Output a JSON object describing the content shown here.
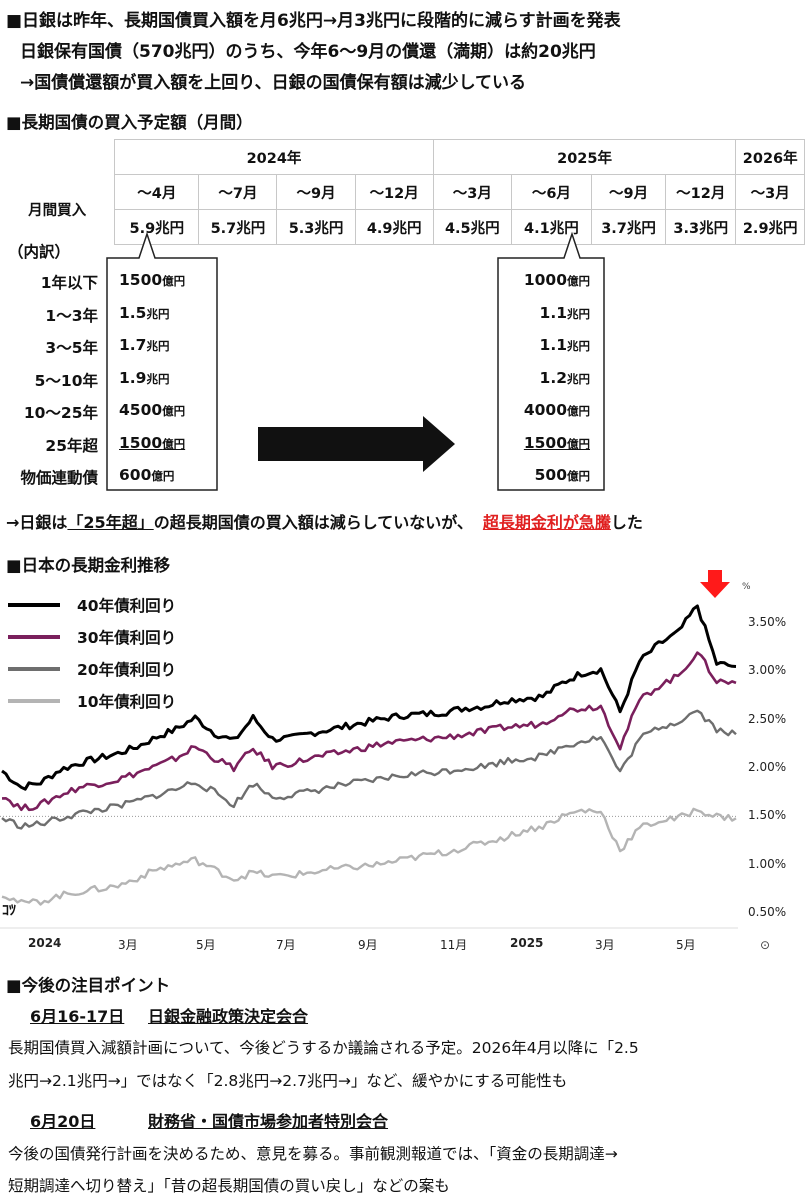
{
  "header": {
    "line1": "■日銀は昨年、長期国債買入額を月6兆円→月3兆円に段階的に減らす計画を発表",
    "line2": "日銀保有国債（570兆円）のうち、今年6〜9月の償還（満期）は約20兆円",
    "line3": "→国債償還額が買入額を上回り、日銀の国債保有額は減少している"
  },
  "plan_section": {
    "title": "■長期国債の買入予定額（月間）",
    "row_label": "月間買入",
    "years": [
      {
        "label": "2024年",
        "span": 4
      },
      {
        "label": "2025年",
        "span": 4
      },
      {
        "label": "2026年",
        "span": 1
      }
    ],
    "periods": [
      "〜4月",
      "〜7月",
      "〜9月",
      "〜12月",
      "〜3月",
      "〜6月",
      "〜9月",
      "〜12月",
      "〜3月"
    ],
    "amounts": [
      "5.9兆円",
      "5.7兆円",
      "5.3兆円",
      "4.9兆円",
      "4.5兆円",
      "4.1兆円",
      "3.7兆円",
      "3.3兆円",
      "2.9兆円"
    ]
  },
  "breakdown": {
    "title": "（内訳）",
    "labels": [
      "1年以下",
      "1〜3年",
      "3〜5年",
      "5〜10年",
      "10〜25年",
      "25年超",
      "物価連動債"
    ],
    "before": [
      {
        "num": "1500",
        "unit": "億円"
      },
      {
        "num": "1.5",
        "unit": "兆円"
      },
      {
        "num": "1.7",
        "unit": "兆円"
      },
      {
        "num": "1.9",
        "unit": "兆円"
      },
      {
        "num": "4500",
        "unit": "億円"
      },
      {
        "num": "1500",
        "unit": "億円"
      },
      {
        "num": "600",
        "unit": "億円"
      }
    ],
    "after": [
      {
        "num": "1000",
        "unit": "億円"
      },
      {
        "num": "1.1",
        "unit": "兆円"
      },
      {
        "num": "1.1",
        "unit": "兆円"
      },
      {
        "num": "1.2",
        "unit": "兆円"
      },
      {
        "num": "4000",
        "unit": "億円"
      },
      {
        "num": "1500",
        "unit": "億円"
      },
      {
        "num": "500",
        "unit": "億円"
      }
    ]
  },
  "note": {
    "prefix": "→日銀は",
    "quoted": "「25年超」",
    "mid": "の超長期国債の買入額は減らしていないが、",
    "red": "超長期金利が急騰",
    "suffix": "した"
  },
  "chart_title": "■日本の長期金利推移",
  "chart_data": {
    "type": "line",
    "unit_label": "%",
    "x_ticks": [
      "2024",
      "3月",
      "5月",
      "7月",
      "9月",
      "11月",
      "2025",
      "3月",
      "5月"
    ],
    "y_ticks": [
      "3.50%",
      "3.00%",
      "2.50%",
      "2.00%",
      "1.50%",
      "1.00%",
      "0.50%"
    ],
    "ylim": [
      0.35,
      3.75
    ],
    "dotted_reference": 1.5,
    "watermark": "ｺﾂ",
    "series": [
      {
        "name": "40年債利回り",
        "color": "#000000",
        "values": [
          1.97,
          1.8,
          1.85,
          1.98,
          2.05,
          2.1,
          2.15,
          2.22,
          2.32,
          2.4,
          2.52,
          2.36,
          2.28,
          2.52,
          2.3,
          2.31,
          2.36,
          2.4,
          2.44,
          2.48,
          2.52,
          2.55,
          2.56,
          2.58,
          2.62,
          2.64,
          2.7,
          2.72,
          2.74,
          2.88,
          2.98,
          3.02,
          2.58,
          3.1,
          3.28,
          3.4,
          3.68,
          3.08,
          3.05
        ]
      },
      {
        "name": "30年債利回り",
        "color": "#7a1f5c",
        "values": [
          1.72,
          1.58,
          1.62,
          1.72,
          1.8,
          1.84,
          1.88,
          1.95,
          2.02,
          2.1,
          2.22,
          2.1,
          2.0,
          2.2,
          2.02,
          2.05,
          2.1,
          2.14,
          2.18,
          2.22,
          2.26,
          2.28,
          2.3,
          2.32,
          2.35,
          2.38,
          2.42,
          2.44,
          2.46,
          2.58,
          2.62,
          2.64,
          2.22,
          2.7,
          2.85,
          2.95,
          3.2,
          2.9,
          2.88
        ]
      },
      {
        "name": "20年債利回り",
        "color": "#6e6e6e",
        "values": [
          1.48,
          1.4,
          1.42,
          1.48,
          1.53,
          1.57,
          1.6,
          1.66,
          1.72,
          1.78,
          1.86,
          1.75,
          1.62,
          1.84,
          1.7,
          1.72,
          1.76,
          1.8,
          1.84,
          1.86,
          1.9,
          1.93,
          1.95,
          1.97,
          2.0,
          2.02,
          2.07,
          2.1,
          2.12,
          2.22,
          2.28,
          2.32,
          1.95,
          2.3,
          2.42,
          2.48,
          2.6,
          2.4,
          2.35
        ]
      },
      {
        "name": "10年債利回り",
        "color": "#b4b4b4",
        "values": [
          0.7,
          0.6,
          0.62,
          0.68,
          0.72,
          0.75,
          0.78,
          0.86,
          0.95,
          1.0,
          1.05,
          0.95,
          0.85,
          0.92,
          0.88,
          0.89,
          0.92,
          0.95,
          0.97,
          0.99,
          1.02,
          1.06,
          1.1,
          1.13,
          1.18,
          1.23,
          1.28,
          1.35,
          1.4,
          1.5,
          1.56,
          1.55,
          1.15,
          1.38,
          1.45,
          1.48,
          1.57,
          1.5,
          1.48
        ]
      }
    ]
  },
  "points": {
    "title": "■今後の注目ポイント",
    "e1_date": "6月16-17日",
    "e1_name": "日銀金融政策決定会合",
    "e1_text1": "長期国債買入減額計画について、今後どうするか議論される予定。2026年4月以降に「2.5",
    "e1_text2": "兆円→2.1兆円→」ではなく「2.8兆円→2.7兆円→」など、緩やかにする可能性も",
    "e2_date": "6月20日",
    "e2_name": "財務省・国債市場参加者特別会合",
    "e2_text1": "今後の国債発行計画を決めるため、意見を募る。事前観測報道では、「資金の長期調達→",
    "e2_text2": "短期調達へ切り替え」「昔の超長期国債の買い戻し」などの案も"
  }
}
